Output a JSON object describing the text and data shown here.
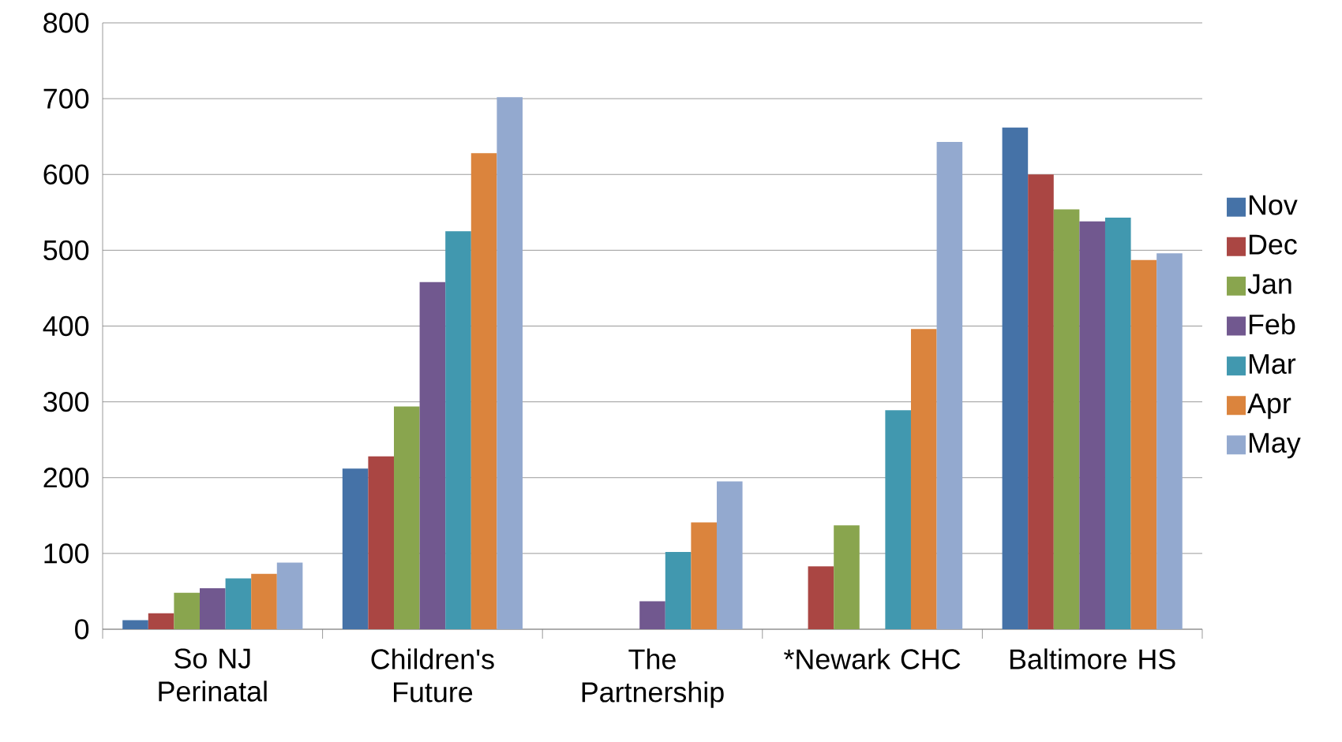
{
  "chart_data": {
    "type": "bar",
    "categories": [
      "So NJ Perinatal",
      "Children's Future",
      "The Partnership",
      "*Newark CHC",
      "Baltimore HS"
    ],
    "series": [
      {
        "name": "Nov",
        "color": "#4572a7",
        "values": [
          12,
          212,
          null,
          null,
          662
        ]
      },
      {
        "name": "Dec",
        "color": "#aa4643",
        "values": [
          21,
          228,
          null,
          83,
          600
        ]
      },
      {
        "name": "Jan",
        "color": "#89a54e",
        "values": [
          48,
          294,
          null,
          137,
          554
        ]
      },
      {
        "name": "Feb",
        "color": "#71588f",
        "values": [
          54,
          458,
          37,
          null,
          538
        ]
      },
      {
        "name": "Mar",
        "color": "#4198af",
        "values": [
          67,
          525,
          102,
          289,
          543
        ]
      },
      {
        "name": "Apr",
        "color": "#db843d",
        "values": [
          73,
          628,
          141,
          396,
          487
        ]
      },
      {
        "name": "May",
        "color": "#93a9cf",
        "values": [
          88,
          702,
          195,
          643,
          496
        ]
      }
    ],
    "ylim": [
      0,
      800
    ],
    "yticks": [
      0,
      100,
      200,
      300,
      400,
      500,
      600,
      700,
      800
    ],
    "grid": "y",
    "legend": "right"
  }
}
